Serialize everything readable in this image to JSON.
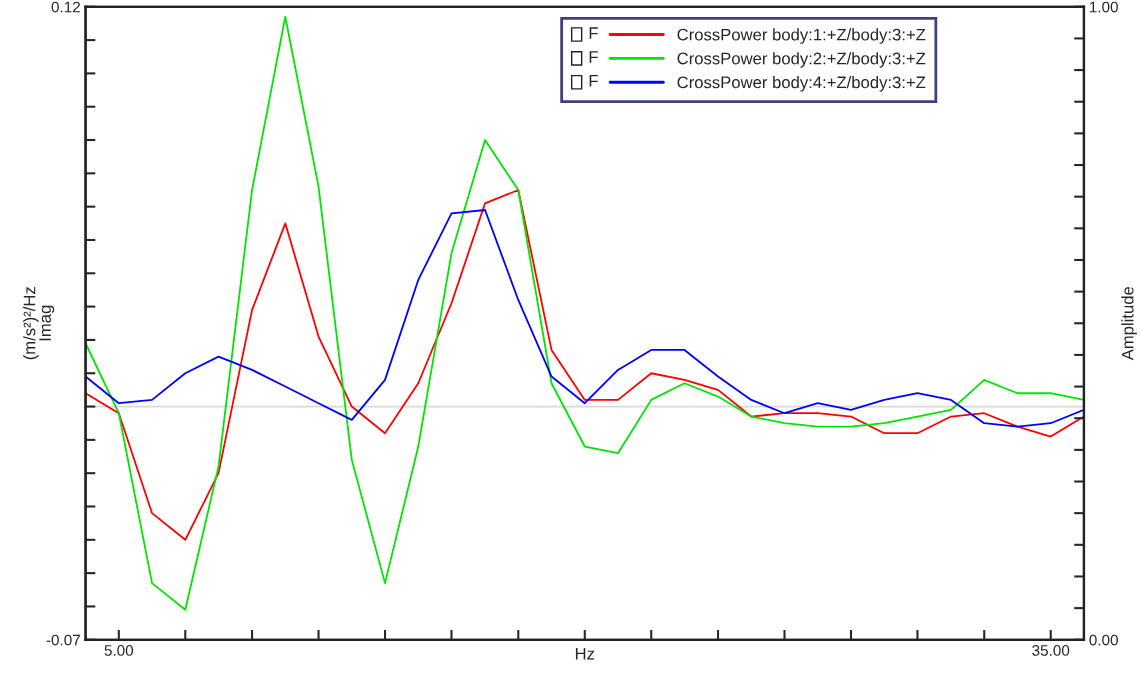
{
  "chart_data": {
    "type": "line",
    "xlabel": "Hz",
    "ylabel": "(m/s²)²/Hz\nImag",
    "y2label": "Amplitude",
    "x": [
      3.93,
      5.0,
      6.07,
      7.14,
      8.21,
      9.29,
      10.36,
      11.43,
      12.5,
      13.57,
      14.64,
      15.71,
      16.79,
      17.86,
      18.93,
      20.0,
      21.07,
      22.14,
      23.21,
      24.29,
      25.36,
      26.43,
      27.5,
      28.57,
      29.64,
      30.71,
      31.79,
      32.86,
      33.93,
      35.0,
      36.07
    ],
    "series": [
      {
        "name": "CrossPower body:1:+Z/body:3:+Z",
        "color": "#ff0000",
        "values": [
          0.004,
          -0.002,
          -0.032,
          -0.04,
          -0.02,
          0.029,
          0.055,
          0.021,
          0.0,
          -0.008,
          0.007,
          0.031,
          0.061,
          0.065,
          0.017,
          0.002,
          0.002,
          0.01,
          0.008,
          0.005,
          -0.003,
          -0.002,
          -0.002,
          -0.003,
          -0.008,
          -0.008,
          -0.003,
          -0.002,
          -0.006,
          -0.009,
          -0.003
        ]
      },
      {
        "name": "CrossPower body:2:+Z/body:3:+Z",
        "color": "#00e600",
        "values": [
          0.019,
          -0.002,
          -0.053,
          -0.061,
          -0.018,
          0.065,
          0.117,
          0.066,
          -0.016,
          -0.053,
          -0.012,
          0.046,
          0.08,
          0.065,
          0.007,
          -0.012,
          -0.014,
          0.002,
          0.007,
          0.003,
          -0.003,
          -0.005,
          -0.006,
          -0.006,
          -0.005,
          -0.003,
          -0.001,
          0.008,
          0.004,
          0.004,
          0.002
        ]
      },
      {
        "name": "CrossPower body:4:+Z/body:3:+Z",
        "color": "#0000ff",
        "values": [
          0.009,
          0.001,
          0.002,
          0.01,
          0.015,
          0.011,
          0.006,
          0.001,
          -0.004,
          0.008,
          0.038,
          0.058,
          0.059,
          0.032,
          0.009,
          0.001,
          0.011,
          0.017,
          0.017,
          0.009,
          0.002,
          -0.002,
          0.001,
          -0.001,
          0.002,
          0.004,
          0.002,
          -0.005,
          -0.006,
          -0.005,
          -0.001
        ]
      }
    ],
    "xlim": [
      3.93,
      36.07
    ],
    "xticks": [
      {
        "value": 5,
        "label": "5.00"
      },
      {
        "value": 7.14,
        "label": null
      },
      {
        "value": 9.29,
        "label": null
      },
      {
        "value": 11.43,
        "label": null
      },
      {
        "value": 13.57,
        "label": null
      },
      {
        "value": 15.71,
        "label": null
      },
      {
        "value": 17.86,
        "label": null
      },
      {
        "value": 20,
        "label": null
      },
      {
        "value": 22.14,
        "label": null
      },
      {
        "value": 24.29,
        "label": null
      },
      {
        "value": 26.43,
        "label": null
      },
      {
        "value": 28.57,
        "label": null
      },
      {
        "value": 30.71,
        "label": null
      },
      {
        "value": 32.86,
        "label": null
      },
      {
        "value": 35,
        "label": "35.00"
      }
    ],
    "ylim": [
      -0.07,
      0.12
    ],
    "yticks": [
      {
        "value": -0.07,
        "label": "-0.07"
      },
      {
        "value": -0.06,
        "label": null
      },
      {
        "value": -0.05,
        "label": null
      },
      {
        "value": -0.04,
        "label": null
      },
      {
        "value": -0.03,
        "label": null
      },
      {
        "value": -0.02,
        "label": null
      },
      {
        "value": -0.01,
        "label": null
      },
      {
        "value": 0,
        "label": null
      },
      {
        "value": 0.01,
        "label": null
      },
      {
        "value": 0.02,
        "label": null
      },
      {
        "value": 0.03,
        "label": null
      },
      {
        "value": 0.04,
        "label": null
      },
      {
        "value": 0.05,
        "label": null
      },
      {
        "value": 0.06,
        "label": null
      },
      {
        "value": 0.07,
        "label": null
      },
      {
        "value": 0.08,
        "label": null
      },
      {
        "value": 0.09,
        "label": null
      },
      {
        "value": 0.1,
        "label": null
      },
      {
        "value": 0.11,
        "label": null
      },
      {
        "value": 0.12,
        "label": "0.12"
      }
    ],
    "y2lim": [
      0,
      1
    ],
    "y2ticks": [
      {
        "value": 0,
        "label": "0.00"
      },
      {
        "value": 0.05,
        "label": null
      },
      {
        "value": 0.1,
        "label": null
      },
      {
        "value": 0.15,
        "label": null
      },
      {
        "value": 0.2,
        "label": null
      },
      {
        "value": 0.25,
        "label": null
      },
      {
        "value": 0.3,
        "label": null
      },
      {
        "value": 0.35,
        "label": null
      },
      {
        "value": 0.4,
        "label": null
      },
      {
        "value": 0.45,
        "label": null
      },
      {
        "value": 0.5,
        "label": null
      },
      {
        "value": 0.55,
        "label": null
      },
      {
        "value": 0.6,
        "label": null
      },
      {
        "value": 0.65,
        "label": null
      },
      {
        "value": 0.7,
        "label": null
      },
      {
        "value": 0.75,
        "label": null
      },
      {
        "value": 0.8,
        "label": null
      },
      {
        "value": 0.85,
        "label": null
      },
      {
        "value": 0.9,
        "label": null
      },
      {
        "value": 0.95,
        "label": null
      },
      {
        "value": 1,
        "label": "1.00"
      }
    ],
    "ref_lines": [
      {
        "axis": "y",
        "value": 0,
        "color": "#d9d9d9"
      }
    ],
    "annotations": [
      "F",
      "F",
      "F"
    ],
    "legend": "top right",
    "grid": false,
    "marker": "none",
    "line_style": "solid"
  }
}
